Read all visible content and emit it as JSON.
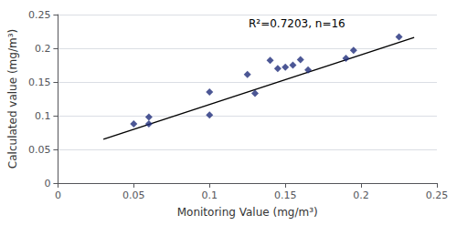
{
  "chart_data": {
    "type": "scatter",
    "xlabel": "Monitoring Value (mg/m³)",
    "ylabel": "Calculated value (mg/m³)",
    "annotation": "R²=0.7203, n=16",
    "series": [
      {
        "type": "scatter",
        "color": "#1F2D7B",
        "marker": "diamond",
        "x": [
          0.05,
          0.06,
          0.06,
          0.1,
          0.1,
          0.125,
          0.13,
          0.14,
          0.145,
          0.15,
          0.155,
          0.16,
          0.165,
          0.19,
          0.195,
          0.225
        ],
        "values": [
          0.088,
          0.098,
          0.088,
          0.135,
          0.101,
          0.161,
          0.133,
          0.182,
          0.17,
          0.172,
          0.175,
          0.183,
          0.168,
          0.185,
          0.197,
          0.217
        ]
      },
      {
        "type": "line",
        "color": "#000000",
        "line_style": "solid",
        "x": [
          0.03,
          0.235
        ],
        "values": [
          0.065,
          0.216
        ]
      }
    ],
    "xlim": [
      0,
      0.25
    ],
    "ylim": [
      0,
      0.25
    ],
    "xticks": [
      0,
      0.05,
      0.1,
      0.15,
      0.2,
      0.25
    ],
    "yticks": [
      0,
      0.05,
      0.1,
      0.15,
      0.2,
      0.25
    ],
    "grid": "y"
  }
}
